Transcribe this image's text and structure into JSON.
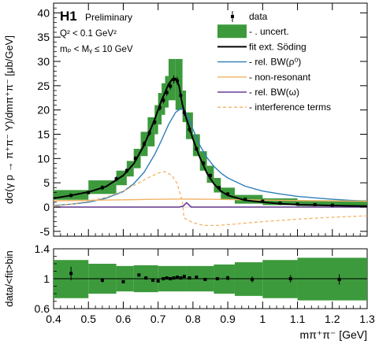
{
  "colors": {
    "band": "#3c9a3c",
    "fit": "#000000",
    "bw_rho": "#2f7fb8",
    "nonres": "#f2b266",
    "bw_omega": "#6a3d9a",
    "interference": "#f2b266"
  },
  "chart_data": [
    {
      "type": "line",
      "panel": "upper",
      "title": "H1",
      "subtitle": "Preliminary",
      "annotations": [
        "Q² < 0.1 GeV²",
        "mₚ < Mᵧ ≤ 10 GeV"
      ],
      "ylabel": "dσ(γ p → π⁺π⁻ Y)/dmπ⁺π⁻ [μb/GeV]",
      "xlabel": "",
      "xlim": [
        0.4,
        1.3
      ],
      "ylim": [
        -6,
        42
      ],
      "yticks": [
        "-5",
        "0",
        "5",
        "10",
        "15",
        "20",
        "25",
        "30",
        "35",
        "40"
      ],
      "xticks": [],
      "legend": {
        "placement": "top-right",
        "entries": [
          {
            "label": "data",
            "style": "point"
          },
          {
            "label": "- . uncert.",
            "style": "box"
          },
          {
            "label": "fit ext. Söding",
            "style": "line-black"
          },
          {
            "label": "- rel. BW(ρ⁰)",
            "style": "line-blue"
          },
          {
            "label": "- non-resonant",
            "style": "line-orange"
          },
          {
            "label": "- rel. BW(ω)",
            "style": "line-purple"
          },
          {
            "label": "- interference terms",
            "style": "line-dashed"
          }
        ]
      },
      "data_points": {
        "x": [
          0.45,
          0.5,
          0.54,
          0.58,
          0.61,
          0.635,
          0.66,
          0.675,
          0.69,
          0.705,
          0.715,
          0.725,
          0.735,
          0.745,
          0.755,
          0.765,
          0.775,
          0.79,
          0.81,
          0.83,
          0.85,
          0.875,
          0.9,
          0.95,
          1.0,
          1.05,
          1.1,
          1.15,
          1.2
        ],
        "y": [
          2.4,
          3.0,
          4.0,
          5.8,
          7.5,
          10.0,
          13.0,
          15.3,
          17.5,
          20.5,
          22.0,
          23.6,
          24.9,
          26.3,
          26.0,
          23.0,
          19.5,
          16.0,
          12.0,
          9.0,
          6.5,
          4.0,
          2.7,
          1.6,
          1.2,
          0.8,
          0.6,
          0.5,
          0.4
        ],
        "yerr": [
          0.4,
          0.4,
          0.5,
          0.5,
          0.5,
          0.5,
          0.6,
          0.6,
          0.6,
          0.7,
          0.7,
          0.7,
          0.7,
          0.8,
          0.8,
          0.7,
          0.7,
          0.6,
          0.5,
          0.5,
          0.4,
          0.3,
          0.3,
          0.2,
          0.2,
          0.2,
          0.2,
          0.2,
          0.2
        ]
      },
      "uncertainty_band": [
        [
          0.4,
          0.5,
          1.5,
          3.5
        ],
        [
          0.5,
          0.58,
          2.7,
          5.5
        ],
        [
          0.58,
          0.61,
          4.5,
          7.5
        ],
        [
          0.61,
          0.63,
          6.3,
          9.5
        ],
        [
          0.63,
          0.65,
          8.0,
          12.0
        ],
        [
          0.65,
          0.67,
          10.5,
          15.5
        ],
        [
          0.67,
          0.69,
          12.5,
          18.5
        ],
        [
          0.69,
          0.7,
          15.0,
          21.0
        ],
        [
          0.7,
          0.71,
          17.0,
          23.5
        ],
        [
          0.71,
          0.72,
          19.0,
          25.5
        ],
        [
          0.72,
          0.73,
          20.5,
          27.0
        ],
        [
          0.73,
          0.75,
          22.0,
          30.5
        ],
        [
          0.75,
          0.77,
          20.0,
          30.5
        ],
        [
          0.77,
          0.78,
          17.5,
          24.0
        ],
        [
          0.78,
          0.8,
          14.0,
          19.5
        ],
        [
          0.8,
          0.82,
          10.5,
          15.0
        ],
        [
          0.82,
          0.84,
          7.5,
          11.5
        ],
        [
          0.84,
          0.86,
          5.0,
          8.5
        ],
        [
          0.86,
          0.88,
          3.0,
          6.0
        ],
        [
          0.88,
          0.92,
          1.5,
          4.0
        ],
        [
          0.92,
          1.0,
          0.7,
          2.5
        ],
        [
          1.0,
          1.1,
          0.4,
          1.8
        ],
        [
          1.1,
          1.3,
          0.2,
          1.4
        ]
      ],
      "series": [
        {
          "name": "fit ext. Söding",
          "x": [
            0.4,
            0.45,
            0.5,
            0.55,
            0.6,
            0.63,
            0.66,
            0.69,
            0.71,
            0.73,
            0.74,
            0.75,
            0.76,
            0.77,
            0.78,
            0.79,
            0.8,
            0.82,
            0.84,
            0.86,
            0.88,
            0.9,
            0.95,
            1.0,
            1.05,
            1.1,
            1.15,
            1.2,
            1.25,
            1.3
          ],
          "y": [
            1.8,
            2.4,
            3.1,
            4.2,
            6.5,
            8.9,
            12.8,
            18.0,
            22.0,
            25.3,
            26.3,
            26.5,
            25.0,
            21.0,
            18.5,
            16.3,
            14.0,
            10.2,
            7.0,
            4.8,
            3.3,
            2.4,
            1.4,
            1.0,
            0.7,
            0.5,
            0.4,
            0.3,
            0.25,
            0.2
          ]
        },
        {
          "name": "- rel. BW(ρ⁰)",
          "x": [
            0.4,
            0.45,
            0.5,
            0.55,
            0.6,
            0.63,
            0.66,
            0.69,
            0.71,
            0.73,
            0.75,
            0.765,
            0.775,
            0.79,
            0.8,
            0.82,
            0.84,
            0.86,
            0.88,
            0.9,
            0.95,
            1.0,
            1.05,
            1.1,
            1.15,
            1.2,
            1.25,
            1.3
          ],
          "y": [
            0.3,
            0.6,
            1.0,
            1.8,
            3.2,
            4.8,
            7.2,
            10.8,
            13.8,
            17.0,
            19.5,
            20.3,
            20.0,
            18.0,
            16.0,
            12.7,
            10.2,
            8.4,
            7.0,
            6.0,
            4.3,
            3.3,
            2.7,
            2.2,
            1.9,
            1.6,
            1.4,
            1.2
          ]
        },
        {
          "name": "- non-resonant",
          "x": [
            0.4,
            0.5,
            0.6,
            0.7,
            0.77,
            0.85,
            0.95,
            1.05,
            1.15,
            1.3
          ],
          "y": [
            1.3,
            1.4,
            1.5,
            1.6,
            1.65,
            1.6,
            1.5,
            1.4,
            1.3,
            1.2
          ]
        },
        {
          "name": "- rel. BW(ω)",
          "x": [
            0.4,
            0.76,
            0.772,
            0.782,
            0.795,
            1.3
          ],
          "y": [
            0.0,
            0.0,
            0.2,
            0.9,
            0.0,
            0.0
          ]
        },
        {
          "name": "- interference terms",
          "x": [
            0.4,
            0.45,
            0.5,
            0.55,
            0.6,
            0.64,
            0.67,
            0.7,
            0.72,
            0.74,
            0.755,
            0.77,
            0.774,
            0.78,
            0.8,
            0.83,
            0.87,
            0.92,
            1.0,
            1.1,
            1.2,
            1.3
          ],
          "y": [
            0.2,
            0.6,
            1.2,
            2.0,
            3.3,
            4.8,
            6.0,
            7.0,
            7.3,
            6.5,
            4.8,
            1.0,
            -2.2,
            -2.5,
            -3.2,
            -3.8,
            -3.8,
            -3.5,
            -3.0,
            -2.5,
            -2.1,
            -1.8
          ]
        }
      ]
    },
    {
      "type": "scatter",
      "panel": "lower",
      "ylabel": "data/<fit>bin",
      "xlabel": "mπ⁺π⁻ [GeV]",
      "xlim": [
        0.4,
        1.3
      ],
      "ylim": [
        0.6,
        1.4
      ],
      "yticks": [
        "0.6",
        "1",
        "1.4"
      ],
      "xticks": [
        "0.4",
        "0.5",
        "0.6",
        "0.7",
        "0.8",
        "0.9",
        "1",
        "1.1",
        "1.2",
        "1.3"
      ],
      "reference_line": 1,
      "uncertainty_band": [
        [
          0.4,
          0.5,
          0.74,
          1.25
        ],
        [
          0.5,
          0.58,
          0.8,
          1.2
        ],
        [
          0.58,
          0.63,
          0.83,
          1.17
        ],
        [
          0.63,
          0.7,
          0.82,
          1.18
        ],
        [
          0.7,
          0.78,
          0.83,
          1.17
        ],
        [
          0.78,
          0.86,
          0.83,
          1.17
        ],
        [
          0.86,
          0.92,
          0.8,
          1.19
        ],
        [
          0.92,
          1.0,
          0.77,
          1.22
        ],
        [
          1.0,
          1.1,
          0.74,
          1.25
        ],
        [
          1.1,
          1.3,
          0.71,
          1.28
        ]
      ],
      "points": {
        "x": [
          0.45,
          0.54,
          0.6,
          0.645,
          0.665,
          0.685,
          0.7,
          0.715,
          0.725,
          0.735,
          0.745,
          0.755,
          0.765,
          0.775,
          0.79,
          0.81,
          0.835,
          0.87,
          0.9,
          0.97,
          1.08,
          1.22
        ],
        "y": [
          1.07,
          0.98,
          0.96,
          1.05,
          1.01,
          0.98,
          0.97,
          1.0,
          1.01,
          1.0,
          1.01,
          1.02,
          1.01,
          1.03,
          1.01,
          1.02,
          0.99,
          1.0,
          1.01,
          0.99,
          1.0,
          0.99
        ],
        "yerr": [
          0.09,
          0.03,
          0.02,
          0.02,
          0.02,
          0.02,
          0.02,
          0.02,
          0.02,
          0.02,
          0.02,
          0.02,
          0.02,
          0.02,
          0.02,
          0.02,
          0.02,
          0.02,
          0.03,
          0.04,
          0.05,
          0.07
        ]
      }
    }
  ]
}
